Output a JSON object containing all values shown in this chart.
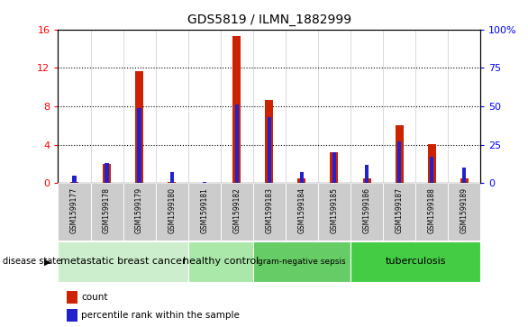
{
  "title": "GDS5819 / ILMN_1882999",
  "samples": [
    "GSM1599177",
    "GSM1599178",
    "GSM1599179",
    "GSM1599180",
    "GSM1599181",
    "GSM1599182",
    "GSM1599183",
    "GSM1599184",
    "GSM1599185",
    "GSM1599186",
    "GSM1599187",
    "GSM1599188",
    "GSM1599189"
  ],
  "count_values": [
    0.1,
    2.0,
    11.7,
    0.1,
    0.05,
    15.3,
    8.7,
    0.5,
    3.2,
    0.5,
    6.0,
    4.1,
    0.5
  ],
  "percentile_values": [
    5,
    13,
    49,
    7,
    0.5,
    51,
    43,
    7,
    20,
    12,
    27,
    17,
    10
  ],
  "left_ylim": [
    0,
    16
  ],
  "right_ylim": [
    0,
    100
  ],
  "left_yticks": [
    0,
    4,
    8,
    12,
    16
  ],
  "right_yticks": [
    0,
    25,
    50,
    75,
    100
  ],
  "right_yticklabels": [
    "0",
    "25",
    "50",
    "75",
    "100%"
  ],
  "groups": [
    {
      "label": "metastatic breast cancer",
      "start": 0,
      "end": 3,
      "color": "#cceecc"
    },
    {
      "label": "healthy control",
      "start": 4,
      "end": 5,
      "color": "#aae8aa"
    },
    {
      "label": "gram-negative sepsis",
      "start": 6,
      "end": 8,
      "color": "#66cc66"
    },
    {
      "label": "tuberculosis",
      "start": 9,
      "end": 12,
      "color": "#44cc44"
    }
  ],
  "bar_color_red": "#cc2200",
  "bar_color_blue": "#2222cc",
  "tick_label_bg": "#cccccc",
  "plot_bg": "#ffffff"
}
